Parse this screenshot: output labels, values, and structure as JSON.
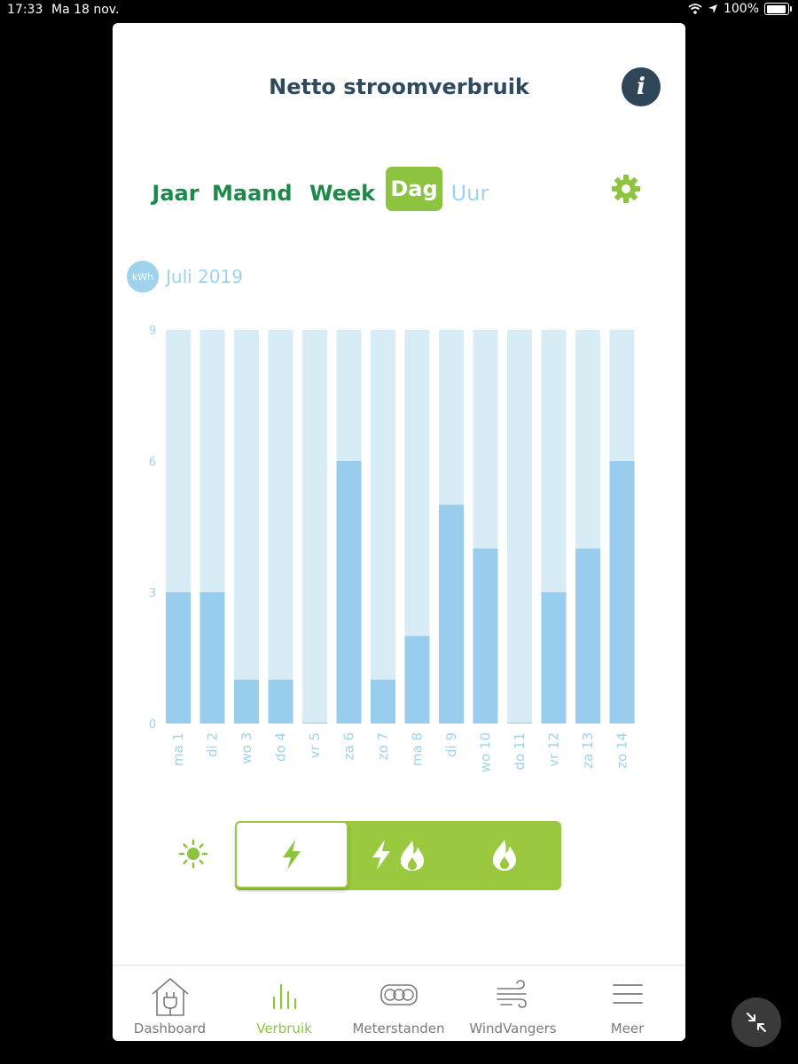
{
  "status_bar": {
    "time": "17:33",
    "date": "Ma 18 nov.",
    "battery_text": "100%",
    "battery_level": 1.0
  },
  "header": {
    "title": "Netto stroomverbruik",
    "info_icon": "info-icon"
  },
  "period_tabs": [
    {
      "label": "Jaar",
      "state": "normal"
    },
    {
      "label": "Maand",
      "state": "normal"
    },
    {
      "label": "Week",
      "state": "normal"
    },
    {
      "label": "Dag",
      "state": "active"
    },
    {
      "label": "Uur",
      "state": "disabled"
    }
  ],
  "settings_icon": "gear-icon",
  "chart_unit": "kWh",
  "chart_period": "Juli 2019",
  "colors": {
    "accent": "#8cc43f",
    "bar": "#98cdee",
    "bar_track": "#d7ecf5",
    "title": "#2e4a5e",
    "axis": "#9fd2ec"
  },
  "chart_data": {
    "type": "bar",
    "categories": [
      "ma 1",
      "di 2",
      "wo 3",
      "do 4",
      "vr 5",
      "za 6",
      "zo 7",
      "ma 8",
      "di 9",
      "wo 10",
      "do 11",
      "vr 12",
      "za 13",
      "zo 14"
    ],
    "values": [
      3,
      3,
      1,
      1,
      0,
      6,
      1,
      2,
      5,
      4,
      0,
      3,
      4,
      6
    ],
    "ylim": [
      0,
      9
    ],
    "yticks": [
      0,
      3,
      6,
      9
    ],
    "title": "",
    "xlabel": "",
    "ylabel": "",
    "grid": false,
    "legend": "none"
  },
  "energy_toggle": {
    "sun_icon": "sun-icon",
    "segments": [
      {
        "name": "electricity",
        "icon": "lightning-icon",
        "active": true
      },
      {
        "name": "electricity-gas",
        "icon": "lightning-flame-icon",
        "active": false
      },
      {
        "name": "gas",
        "icon": "flame-icon",
        "active": false
      }
    ]
  },
  "tab_bar": [
    {
      "label": "Dashboard",
      "icon": "house-plug-icon",
      "active": false
    },
    {
      "label": "Verbruik",
      "icon": "bars-icon",
      "active": true
    },
    {
      "label": "Meterstanden",
      "icon": "meter-icon",
      "active": false
    },
    {
      "label": "WindVangers",
      "icon": "wind-icon",
      "active": false
    },
    {
      "label": "Meer",
      "icon": "menu-icon",
      "active": false
    }
  ],
  "floating_button_icon": "shrink-arrows-icon"
}
